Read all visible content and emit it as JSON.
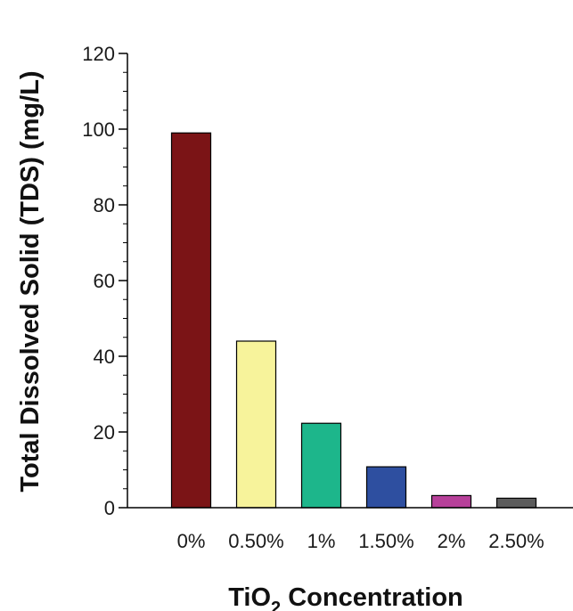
{
  "chart_data": {
    "type": "bar",
    "title": "",
    "xlabel": "TiO",
    "xlabel_subscript": "2",
    "xlabel_suffix": " Concentration",
    "ylabel": "Total Dissolved Solid (TDS) (mg/L)",
    "categories": [
      "0%",
      "0.50%",
      "1%",
      "1.50%",
      "2%",
      "2.50%"
    ],
    "values": [
      99,
      44,
      22.3,
      10.8,
      3.2,
      2.5
    ],
    "colors": [
      "#7b1416",
      "#f7f39b",
      "#1db68b",
      "#2e4fa0",
      "#b7409a",
      "#5c5c5c"
    ],
    "ylim": [
      0,
      120
    ],
    "yticks": [
      "0",
      "20",
      "40",
      "60",
      "80",
      "100",
      "120"
    ],
    "minor_tick_step": 5,
    "grid": false,
    "legend": "none"
  }
}
